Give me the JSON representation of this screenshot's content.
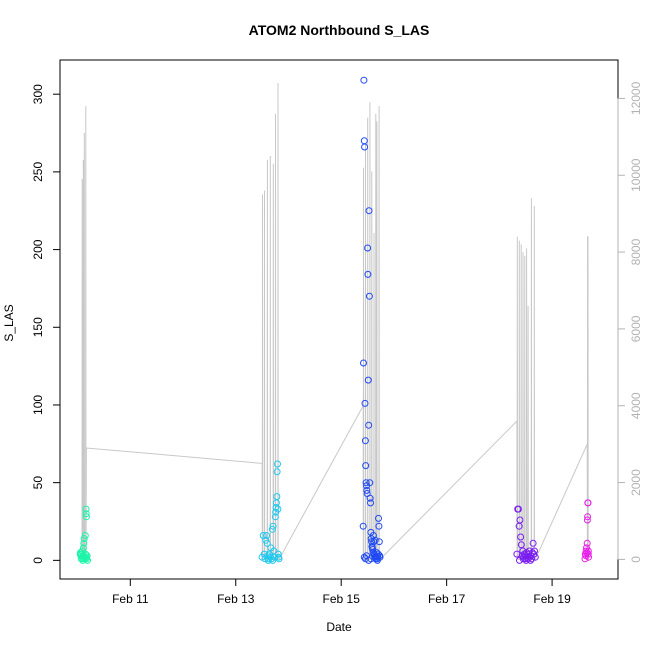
{
  "chart_data": {
    "type": "scatter",
    "title": "ATOM2 Northbound S_LAS",
    "xlabel": "Date",
    "ylabel": "S_LAS",
    "xlim": [
      "2024-02-09T16:00",
      "2024-02-20T06:00"
    ],
    "ylim": [
      -12,
      322
    ],
    "y2lim": [
      -510,
      13000
    ],
    "x_ticks": [
      {
        "value": "2024-02-11T00:00",
        "label": "Feb 11"
      },
      {
        "value": "2024-02-13T00:00",
        "label": "Feb 13"
      },
      {
        "value": "2024-02-15T00:00",
        "label": "Feb 15"
      },
      {
        "value": "2024-02-17T00:00",
        "label": "Feb 17"
      },
      {
        "value": "2024-02-19T00:00",
        "label": "Feb 19"
      }
    ],
    "y_ticks": [
      0,
      50,
      100,
      150,
      200,
      250,
      300
    ],
    "y2_ticks": [
      0,
      2000,
      4000,
      6000,
      8000,
      10000,
      12000
    ],
    "grid": false,
    "colors": {
      "line": "#c8c8c8",
      "right_axis": "#b3b3b3",
      "axes": "#000000"
    },
    "line_series": {
      "axis": "right",
      "points": [
        [
          "2024-02-10T02:00",
          0
        ],
        [
          "2024-02-10T02:05",
          9900
        ],
        [
          "2024-02-10T02:10",
          0
        ],
        [
          "2024-02-10T02:30",
          0
        ],
        [
          "2024-02-10T02:35",
          10400
        ],
        [
          "2024-02-10T02:40",
          0
        ],
        [
          "2024-02-10T03:00",
          0
        ],
        [
          "2024-02-10T03:05",
          11100
        ],
        [
          "2024-02-10T03:10",
          0
        ],
        [
          "2024-02-10T03:40",
          0
        ],
        [
          "2024-02-10T03:45",
          11800
        ],
        [
          "2024-02-10T03:50",
          0
        ],
        [
          "2024-02-10T04:00",
          2900
        ],
        [
          "2024-02-13T12:00",
          2500
        ],
        [
          "2024-02-13T12:05",
          0
        ],
        [
          "2024-02-13T12:10",
          9500
        ],
        [
          "2024-02-13T12:15",
          0
        ],
        [
          "2024-02-13T13:00",
          0
        ],
        [
          "2024-02-13T13:05",
          9600
        ],
        [
          "2024-02-13T13:10",
          0
        ],
        [
          "2024-02-13T14:20",
          0
        ],
        [
          "2024-02-13T14:25",
          10400
        ],
        [
          "2024-02-13T14:30",
          0
        ],
        [
          "2024-02-13T15:40",
          0
        ],
        [
          "2024-02-13T15:45",
          10500
        ],
        [
          "2024-02-13T15:50",
          0
        ],
        [
          "2024-02-13T17:00",
          0
        ],
        [
          "2024-02-13T17:05",
          10300
        ],
        [
          "2024-02-13T17:10",
          0
        ],
        [
          "2024-02-13T18:00",
          0
        ],
        [
          "2024-02-13T18:05",
          11600
        ],
        [
          "2024-02-13T18:10",
          0
        ],
        [
          "2024-02-13T19:10",
          0
        ],
        [
          "2024-02-13T19:15",
          12400
        ],
        [
          "2024-02-13T19:20",
          0
        ],
        [
          "2024-02-13T19:40",
          0
        ],
        [
          "2024-02-15T10:00",
          4000
        ],
        [
          "2024-02-15T10:05",
          0
        ],
        [
          "2024-02-15T10:10",
          10200
        ],
        [
          "2024-02-15T10:15",
          0
        ],
        [
          "2024-02-15T11:00",
          0
        ],
        [
          "2024-02-15T11:05",
          10800
        ],
        [
          "2024-02-15T11:10",
          0
        ],
        [
          "2024-02-15T12:00",
          0
        ],
        [
          "2024-02-15T12:05",
          11500
        ],
        [
          "2024-02-15T12:10",
          0
        ],
        [
          "2024-02-15T13:00",
          0
        ],
        [
          "2024-02-15T13:05",
          11900
        ],
        [
          "2024-02-15T13:10",
          0
        ],
        [
          "2024-02-15T13:50",
          0
        ],
        [
          "2024-02-15T13:55",
          10100
        ],
        [
          "2024-02-15T14:00",
          0
        ],
        [
          "2024-02-15T14:50",
          0
        ],
        [
          "2024-02-15T14:55",
          8500
        ],
        [
          "2024-02-15T15:00",
          0
        ],
        [
          "2024-02-15T15:40",
          0
        ],
        [
          "2024-02-15T15:45",
          11600
        ],
        [
          "2024-02-15T15:50",
          0
        ],
        [
          "2024-02-15T16:10",
          0
        ],
        [
          "2024-02-15T16:15",
          11400
        ],
        [
          "2024-02-15T16:20",
          0
        ],
        [
          "2024-02-15T17:10",
          0
        ],
        [
          "2024-02-15T17:15",
          11800
        ],
        [
          "2024-02-15T17:20",
          0
        ],
        [
          "2024-02-15T17:40",
          0
        ],
        [
          "2024-02-18T08:00",
          3600
        ],
        [
          "2024-02-18T08:05",
          0
        ],
        [
          "2024-02-18T08:10",
          8400
        ],
        [
          "2024-02-18T08:15",
          0
        ],
        [
          "2024-02-18T09:00",
          0
        ],
        [
          "2024-02-18T09:05",
          8300
        ],
        [
          "2024-02-18T09:10",
          0
        ],
        [
          "2024-02-18T09:50",
          0
        ],
        [
          "2024-02-18T09:55",
          8200
        ],
        [
          "2024-02-18T10:00",
          0
        ],
        [
          "2024-02-18T10:40",
          0
        ],
        [
          "2024-02-18T10:45",
          8000
        ],
        [
          "2024-02-18T10:50",
          0
        ],
        [
          "2024-02-18T11:30",
          0
        ],
        [
          "2024-02-18T11:35",
          7900
        ],
        [
          "2024-02-18T11:40",
          0
        ],
        [
          "2024-02-18T12:20",
          0
        ],
        [
          "2024-02-18T12:25",
          8100
        ],
        [
          "2024-02-18T12:30",
          0
        ],
        [
          "2024-02-18T13:00",
          0
        ],
        [
          "2024-02-18T13:05",
          6600
        ],
        [
          "2024-02-18T13:10",
          0
        ],
        [
          "2024-02-18T14:30",
          0
        ],
        [
          "2024-02-18T14:35",
          9400
        ],
        [
          "2024-02-18T14:40",
          0
        ],
        [
          "2024-02-18T15:50",
          0
        ],
        [
          "2024-02-18T15:55",
          9200
        ],
        [
          "2024-02-18T16:00",
          0
        ],
        [
          "2024-02-18T16:20",
          0
        ],
        [
          "2024-02-19T16:00",
          3000
        ],
        [
          "2024-02-19T16:05",
          0
        ],
        [
          "2024-02-19T16:10",
          8400
        ],
        [
          "2024-02-19T16:20",
          8400
        ],
        [
          "2024-02-19T16:25",
          0
        ]
      ]
    },
    "scatter_groups": [
      {
        "color": "#1cf5a8",
        "points": [
          [
            "2024-02-10T01:20",
            5
          ],
          [
            "2024-02-10T01:30",
            3
          ],
          [
            "2024-02-10T01:40",
            1
          ],
          [
            "2024-02-10T01:50",
            4
          ],
          [
            "2024-02-10T02:00",
            2
          ],
          [
            "2024-02-10T02:10",
            6
          ],
          [
            "2024-02-10T02:20",
            1
          ],
          [
            "2024-02-10T02:30",
            3
          ],
          [
            "2024-02-10T02:40",
            8
          ],
          [
            "2024-02-10T02:50",
            11
          ],
          [
            "2024-02-10T03:00",
            14
          ],
          [
            "2024-02-10T03:10",
            2
          ],
          [
            "2024-02-10T03:20",
            1
          ],
          [
            "2024-02-10T03:30",
            16
          ],
          [
            "2024-02-10T03:40",
            4
          ],
          [
            "2024-02-10T03:50",
            33
          ],
          [
            "2024-02-10T03:55",
            30
          ],
          [
            "2024-02-10T04:00",
            28
          ],
          [
            "2024-02-10T04:05",
            2
          ],
          [
            "2024-02-10T04:10",
            1
          ],
          [
            "2024-02-10T04:20",
            3
          ],
          [
            "2024-02-10T04:30",
            0
          ],
          [
            "2024-02-10T01:15",
            4
          ],
          [
            "2024-02-10T02:25",
            0
          ]
        ]
      },
      {
        "color": "#1ec8ef",
        "points": [
          [
            "2024-02-13T12:00",
            2
          ],
          [
            "2024-02-13T12:30",
            16
          ],
          [
            "2024-02-13T13:00",
            4
          ],
          [
            "2024-02-13T13:20",
            1
          ],
          [
            "2024-02-13T13:40",
            13
          ],
          [
            "2024-02-13T14:00",
            16
          ],
          [
            "2024-02-13T14:20",
            11
          ],
          [
            "2024-02-13T14:40",
            3
          ],
          [
            "2024-02-13T15:00",
            1
          ],
          [
            "2024-02-13T15:20",
            4
          ],
          [
            "2024-02-13T15:40",
            2
          ],
          [
            "2024-02-13T16:00",
            8
          ],
          [
            "2024-02-13T16:20",
            1
          ],
          [
            "2024-02-13T16:40",
            20
          ],
          [
            "2024-02-13T17:00",
            22
          ],
          [
            "2024-02-13T17:20",
            6
          ],
          [
            "2024-02-13T17:40",
            2
          ],
          [
            "2024-02-13T18:00",
            28
          ],
          [
            "2024-02-13T18:10",
            31
          ],
          [
            "2024-02-13T18:20",
            34
          ],
          [
            "2024-02-13T18:30",
            37
          ],
          [
            "2024-02-13T18:40",
            41
          ],
          [
            "2024-02-13T18:50",
            57
          ],
          [
            "2024-02-13T19:00",
            62
          ],
          [
            "2024-02-13T19:10",
            33
          ],
          [
            "2024-02-13T19:20",
            4
          ],
          [
            "2024-02-13T19:30",
            2
          ],
          [
            "2024-02-13T19:40",
            1
          ],
          [
            "2024-02-13T14:50",
            0
          ],
          [
            "2024-02-13T16:50",
            0
          ]
        ]
      },
      {
        "color": "#1f4af5",
        "points": [
          [
            "2024-02-15T10:00",
            22
          ],
          [
            "2024-02-15T10:10",
            127
          ],
          [
            "2024-02-15T10:20",
            309
          ],
          [
            "2024-02-15T10:30",
            270
          ],
          [
            "2024-02-15T10:40",
            266
          ],
          [
            "2024-02-15T10:50",
            101
          ],
          [
            "2024-02-15T11:00",
            77
          ],
          [
            "2024-02-15T11:10",
            61
          ],
          [
            "2024-02-15T11:20",
            50
          ],
          [
            "2024-02-15T11:30",
            48
          ],
          [
            "2024-02-15T11:40",
            45
          ],
          [
            "2024-02-15T11:50",
            43
          ],
          [
            "2024-02-15T12:00",
            201
          ],
          [
            "2024-02-15T12:10",
            184
          ],
          [
            "2024-02-15T12:20",
            116
          ],
          [
            "2024-02-15T12:30",
            87
          ],
          [
            "2024-02-15T12:40",
            225
          ],
          [
            "2024-02-15T12:50",
            170
          ],
          [
            "2024-02-15T13:00",
            50
          ],
          [
            "2024-02-15T13:10",
            40
          ],
          [
            "2024-02-15T13:20",
            37
          ],
          [
            "2024-02-15T13:30",
            18
          ],
          [
            "2024-02-15T13:40",
            14
          ],
          [
            "2024-02-15T13:50",
            12
          ],
          [
            "2024-02-15T14:00",
            9
          ],
          [
            "2024-02-15T14:10",
            8
          ],
          [
            "2024-02-15T14:20",
            7
          ],
          [
            "2024-02-15T14:30",
            5
          ],
          [
            "2024-02-15T14:40",
            16
          ],
          [
            "2024-02-15T14:50",
            12
          ],
          [
            "2024-02-15T15:00",
            4
          ],
          [
            "2024-02-15T15:10",
            3
          ],
          [
            "2024-02-15T15:20",
            2
          ],
          [
            "2024-02-15T15:30",
            13
          ],
          [
            "2024-02-15T15:40",
            1
          ],
          [
            "2024-02-15T15:50",
            3
          ],
          [
            "2024-02-15T16:00",
            2
          ],
          [
            "2024-02-15T16:10",
            5
          ],
          [
            "2024-02-15T16:20",
            1
          ],
          [
            "2024-02-15T16:30",
            0
          ],
          [
            "2024-02-15T16:40",
            2
          ],
          [
            "2024-02-15T16:50",
            4
          ],
          [
            "2024-02-15T17:00",
            27
          ],
          [
            "2024-02-15T17:10",
            22
          ],
          [
            "2024-02-15T17:20",
            12
          ],
          [
            "2024-02-15T17:30",
            3
          ],
          [
            "2024-02-15T17:40",
            2
          ],
          [
            "2024-02-15T10:30",
            2
          ],
          [
            "2024-02-15T11:00",
            1
          ],
          [
            "2024-02-15T11:30",
            3
          ],
          [
            "2024-02-15T12:30",
            0
          ],
          [
            "2024-02-15T13:30",
            1
          ]
        ]
      },
      {
        "color": "#7a1ef0",
        "points": [
          [
            "2024-02-18T08:00",
            4
          ],
          [
            "2024-02-18T08:20",
            33
          ],
          [
            "2024-02-18T08:40",
            33
          ],
          [
            "2024-02-18T09:00",
            22
          ],
          [
            "2024-02-18T09:20",
            26
          ],
          [
            "2024-02-18T09:40",
            15
          ],
          [
            "2024-02-18T10:00",
            10
          ],
          [
            "2024-02-18T10:20",
            3
          ],
          [
            "2024-02-18T10:40",
            6
          ],
          [
            "2024-02-18T11:00",
            2
          ],
          [
            "2024-02-18T11:20",
            4
          ],
          [
            "2024-02-18T11:40",
            1
          ],
          [
            "2024-02-18T12:00",
            3
          ],
          [
            "2024-02-18T12:20",
            5
          ],
          [
            "2024-02-18T12:40",
            2
          ],
          [
            "2024-02-18T13:00",
            1
          ],
          [
            "2024-02-18T13:20",
            4
          ],
          [
            "2024-02-18T13:40",
            6
          ],
          [
            "2024-02-18T14:00",
            2
          ],
          [
            "2024-02-18T14:20",
            3
          ],
          [
            "2024-02-18T14:40",
            1
          ],
          [
            "2024-02-18T15:00",
            5
          ],
          [
            "2024-02-18T15:20",
            11
          ],
          [
            "2024-02-18T15:40",
            4
          ],
          [
            "2024-02-18T16:00",
            6
          ],
          [
            "2024-02-18T16:20",
            2
          ],
          [
            "2024-02-18T09:10",
            0
          ],
          [
            "2024-02-18T10:50",
            1
          ],
          [
            "2024-02-18T12:10",
            0
          ],
          [
            "2024-02-18T14:10",
            0
          ]
        ]
      },
      {
        "color": "#e81ee8",
        "points": [
          [
            "2024-02-19T15:00",
            1
          ],
          [
            "2024-02-19T15:10",
            4
          ],
          [
            "2024-02-19T15:20",
            3
          ],
          [
            "2024-02-19T15:30",
            6
          ],
          [
            "2024-02-19T15:40",
            8
          ],
          [
            "2024-02-19T15:50",
            5
          ],
          [
            "2024-02-19T16:00",
            11
          ],
          [
            "2024-02-19T16:05",
            26
          ],
          [
            "2024-02-19T16:10",
            28
          ],
          [
            "2024-02-19T16:15",
            37
          ],
          [
            "2024-02-19T16:20",
            37
          ],
          [
            "2024-02-19T16:25",
            4
          ],
          [
            "2024-02-19T16:30",
            6
          ],
          [
            "2024-02-19T16:35",
            2
          ]
        ]
      }
    ]
  }
}
